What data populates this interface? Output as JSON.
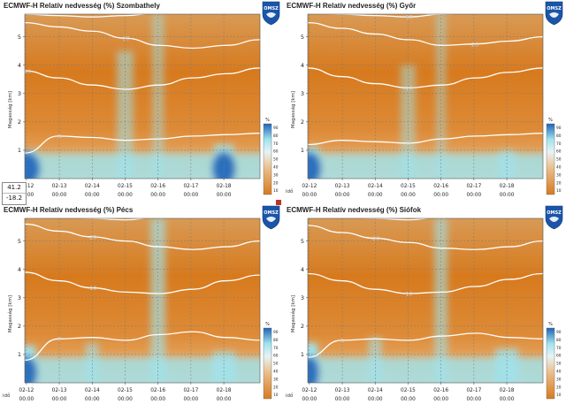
{
  "app": {
    "logo_text": "OMSZ",
    "tooltip": {
      "value_top": "41.2",
      "value_bottom": "-18.2"
    }
  },
  "colors": {
    "dry": "#d77a1e",
    "mid": "#eaba82",
    "moist": "#9fe3ee",
    "wet": "#1f63b8",
    "temperature_isoline": "#ffffff",
    "grid": "#7a7a7a",
    "logo": "#1b55a8"
  },
  "chart_data": [
    {
      "type": "heatmap",
      "title": "ECMWF-H Relatív nedvesség (%) Szombathely",
      "ylabel": "Magasság [km]",
      "xlabel": "",
      "x_ticks": [
        "02-12",
        "02-13",
        "02-14",
        "02-15",
        "02-16",
        "02-17",
        "02-18"
      ],
      "x_ticks_time": "00:00",
      "y_ticks": [
        1,
        2,
        3,
        4,
        5
      ],
      "ylim": [
        0,
        5.8
      ],
      "colorbar": {
        "unit": "%",
        "ticks": [
          10,
          20,
          30,
          40,
          50,
          60,
          70,
          80,
          90
        ]
      },
      "isolines": [
        {
          "label": "-30",
          "x_label": "02-16",
          "y": [
            5.8,
            5.75,
            5.7,
            5.75,
            5.85,
            5.95,
            6.0,
            5.95
          ]
        },
        {
          "label": "-20",
          "x_label": "02-15",
          "y": [
            5.5,
            5.35,
            5.2,
            4.95,
            4.7,
            4.6,
            4.7,
            4.9
          ]
        },
        {
          "label": "-10",
          "x_label": "02-12",
          "y": [
            3.8,
            3.55,
            3.3,
            3.15,
            3.3,
            3.55,
            3.7,
            3.9
          ]
        },
        {
          "label": "0",
          "x_label": "02-13",
          "y": [
            0.9,
            1.5,
            1.45,
            1.35,
            1.4,
            1.5,
            1.55,
            1.6
          ]
        }
      ],
      "moisture_columns": [
        {
          "x": "02-12",
          "width_days": 0.7,
          "top_km": 1.0,
          "strength": 1.0
        },
        {
          "x": "02-15",
          "width_days": 0.5,
          "top_km": 4.5,
          "strength": 0.55
        },
        {
          "x": "02-16",
          "width_days": 0.35,
          "top_km": 5.8,
          "strength": 0.5
        },
        {
          "x": "02-18",
          "width_days": 0.6,
          "top_km": 1.2,
          "strength": 0.85
        }
      ]
    },
    {
      "type": "heatmap",
      "title": "ECMWF-H Relatív nedvesség (%) Győr",
      "ylabel": "Magasság [km]",
      "xlabel": "idő",
      "x_ticks": [
        "02-12",
        "02-13",
        "02-14",
        "02-15",
        "02-16",
        "02-17",
        "02-18"
      ],
      "x_ticks_time": "00:00",
      "y_ticks": [
        1,
        2,
        3,
        4,
        5
      ],
      "ylim": [
        0,
        5.8
      ],
      "colorbar": {
        "unit": "%",
        "ticks": [
          10,
          20,
          30,
          40,
          50,
          60,
          70,
          80,
          90
        ]
      },
      "isolines": [
        {
          "label": "-30",
          "x_label": "02-15",
          "y": [
            5.85,
            5.8,
            5.75,
            5.7,
            5.8,
            5.9,
            6.0,
            5.95
          ]
        },
        {
          "label": "-20",
          "x_label": "02-17",
          "y": [
            5.5,
            5.3,
            5.1,
            4.9,
            4.7,
            4.75,
            4.85,
            5.0
          ]
        },
        {
          "label": "-10",
          "x_label": "02-15",
          "y": [
            3.9,
            3.6,
            3.35,
            3.2,
            3.3,
            3.55,
            3.75,
            3.9
          ]
        },
        {
          "label": "0",
          "x_label": "02-15",
          "y": [
            1.2,
            1.35,
            1.3,
            1.25,
            1.4,
            1.5,
            1.55,
            1.6
          ]
        }
      ],
      "moisture_columns": [
        {
          "x": "02-12",
          "width_days": 0.6,
          "top_km": 1.1,
          "strength": 1.0
        },
        {
          "x": "02-15",
          "width_days": 0.45,
          "top_km": 4.0,
          "strength": 0.5
        },
        {
          "x": "02-16",
          "width_days": 0.3,
          "top_km": 5.8,
          "strength": 0.45
        },
        {
          "x": "02-18",
          "width_days": 0.5,
          "top_km": 1.0,
          "strength": 0.7
        }
      ]
    },
    {
      "type": "heatmap",
      "title": "ECMWF-H Relatív nedvesség (%) Pécs",
      "ylabel": "Magasság [km]",
      "xlabel": "idő",
      "x_ticks": [
        "02-12",
        "02-13",
        "02-14",
        "02-15",
        "02-16",
        "02-17",
        "02-18"
      ],
      "x_ticks_time": "00:00",
      "y_ticks": [
        1,
        2,
        3,
        4,
        5
      ],
      "ylim": [
        0,
        5.8
      ],
      "colorbar": {
        "unit": "%",
        "ticks": [
          10,
          20,
          30,
          40,
          50,
          60,
          70,
          80,
          90
        ]
      },
      "isolines": [
        {
          "label": "-30",
          "x_label": "02-16",
          "y": [
            5.9,
            5.85,
            5.8,
            5.75,
            5.85,
            5.95,
            6.0,
            5.95
          ]
        },
        {
          "label": "-20",
          "x_label": "02-14",
          "y": [
            5.6,
            5.35,
            5.15,
            5.0,
            4.8,
            4.7,
            4.8,
            5.0
          ]
        },
        {
          "label": "-10",
          "x_label": "02-14",
          "y": [
            3.9,
            3.6,
            3.35,
            3.2,
            3.15,
            3.3,
            3.6,
            3.8
          ]
        },
        {
          "label": "0",
          "x_label": "02-13",
          "y": [
            0.8,
            1.55,
            1.6,
            1.5,
            1.7,
            1.8,
            1.6,
            1.5
          ]
        }
      ],
      "moisture_columns": [
        {
          "x": "02-12",
          "width_days": 0.55,
          "top_km": 1.3,
          "strength": 1.0
        },
        {
          "x": "02-14",
          "width_days": 0.4,
          "top_km": 1.4,
          "strength": 0.6
        },
        {
          "x": "02-16",
          "width_days": 0.45,
          "top_km": 5.8,
          "strength": 0.65
        },
        {
          "x": "02-18",
          "width_days": 0.7,
          "top_km": 1.1,
          "strength": 0.75
        }
      ]
    },
    {
      "type": "heatmap",
      "title": "ECMWF-H Relatív nedvesség (%) Siófok",
      "ylabel": "Magasság [km]",
      "xlabel": "idő",
      "x_ticks": [
        "02-12",
        "02-13",
        "02-14",
        "02-15",
        "02-16",
        "02-17",
        "02-18"
      ],
      "x_ticks_time": "00:00",
      "y_ticks": [
        1,
        2,
        3,
        4,
        5
      ],
      "ylim": [
        0,
        5.8
      ],
      "colorbar": {
        "unit": "%",
        "ticks": [
          10,
          20,
          30,
          40,
          50,
          60,
          70,
          80,
          90
        ]
      },
      "isolines": [
        {
          "label": "-30",
          "x_label": "02-16",
          "y": [
            5.9,
            5.85,
            5.8,
            5.75,
            5.85,
            5.95,
            6.0,
            5.95
          ]
        },
        {
          "label": "-20",
          "x_label": "02-14",
          "y": [
            5.55,
            5.3,
            5.1,
            4.95,
            4.75,
            4.7,
            4.8,
            5.0
          ]
        },
        {
          "label": "-10",
          "x_label": "02-15",
          "y": [
            3.85,
            3.6,
            3.3,
            3.15,
            3.2,
            3.4,
            3.65,
            3.85
          ]
        },
        {
          "label": "0",
          "x_label": "02-13",
          "y": [
            0.9,
            1.5,
            1.55,
            1.5,
            1.65,
            1.75,
            1.6,
            1.55
          ]
        }
      ],
      "moisture_columns": [
        {
          "x": "02-12",
          "width_days": 0.5,
          "top_km": 1.4,
          "strength": 1.0
        },
        {
          "x": "02-14",
          "width_days": 0.4,
          "top_km": 1.6,
          "strength": 0.6
        },
        {
          "x": "02-16",
          "width_days": 0.4,
          "top_km": 5.8,
          "strength": 0.6
        },
        {
          "x": "02-18",
          "width_days": 0.7,
          "top_km": 1.2,
          "strength": 0.8
        }
      ]
    }
  ]
}
